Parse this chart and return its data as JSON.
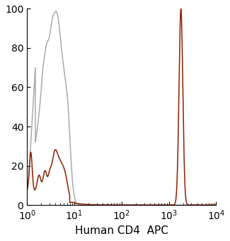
{
  "xlim": [
    1,
    10000
  ],
  "ylim": [
    0,
    100
  ],
  "xlabel": "Human CD4  APC",
  "xlabel_fontsize": 11,
  "yticks": [
    0,
    20,
    40,
    60,
    80,
    100
  ],
  "gray_color": "#aaaaaa",
  "red_color": "#8B2000",
  "bg_color": "#ffffff",
  "line_width": 1.1
}
